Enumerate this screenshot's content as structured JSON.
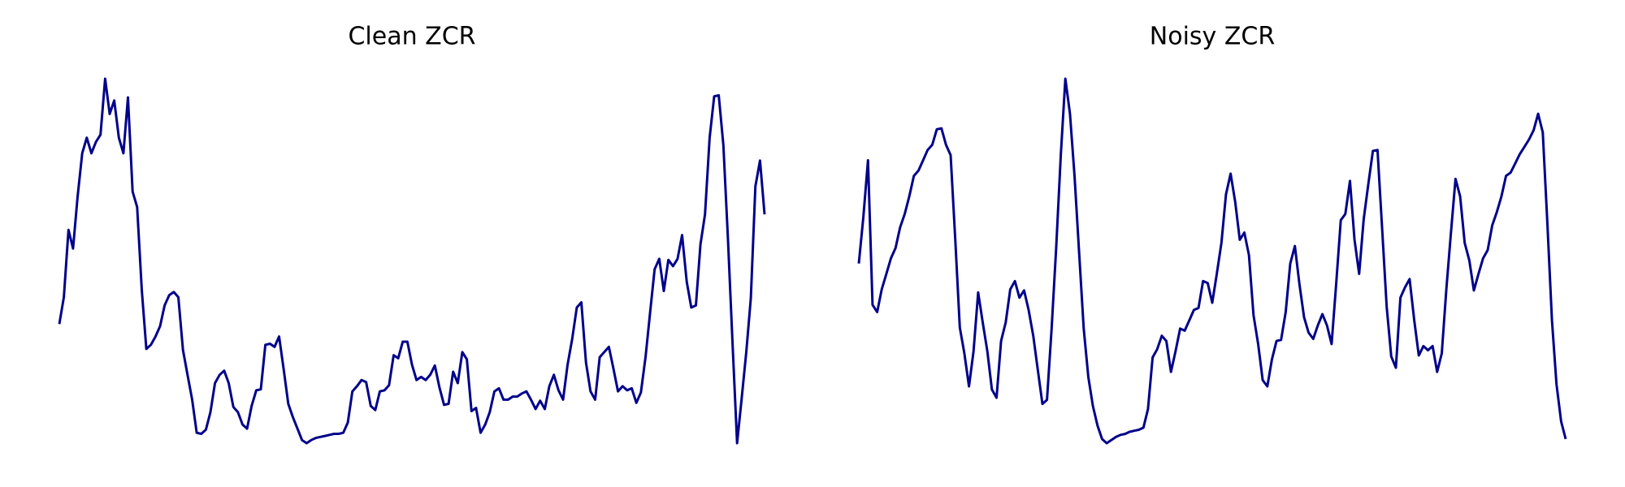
{
  "chart_data": [
    {
      "type": "line",
      "title": "Clean ZCR",
      "color": "#00008b",
      "values": [
        117,
        143,
        208,
        190,
        240,
        282,
        297,
        282,
        293,
        300,
        354,
        320,
        333,
        297,
        282,
        336,
        245,
        230,
        150,
        93,
        97,
        105,
        115,
        135,
        145,
        148,
        143,
        92,
        68,
        44,
        12,
        11,
        15,
        32,
        60,
        68,
        72,
        60,
        37,
        32,
        20,
        16,
        38,
        53,
        54,
        97,
        98,
        95,
        105,
        73,
        40,
        27,
        16,
        5,
        2,
        5,
        7,
        8,
        9,
        10,
        11,
        11,
        12,
        22,
        52,
        57,
        63,
        61,
        38,
        34,
        52,
        53,
        58,
        87,
        84,
        100,
        100,
        78,
        63,
        66,
        63,
        68,
        77,
        56,
        39,
        40,
        71,
        60,
        90,
        83,
        33,
        36,
        12,
        20,
        32,
        52,
        55,
        44,
        44,
        47,
        47,
        50,
        52,
        44,
        35,
        43,
        35,
        57,
        68,
        53,
        44,
        78,
        103,
        133,
        138,
        80,
        52,
        44,
        85,
        90,
        95,
        74,
        52,
        57,
        53,
        55,
        41,
        51,
        85,
        128,
        170,
        180,
        149,
        179,
        173,
        180,
        203,
        158,
        133,
        135,
        194,
        223,
        297,
        337,
        338,
        290,
        200,
        100,
        2,
        45,
        90,
        142,
        250,
        275,
        223
      ]
    },
    {
      "type": "line",
      "title": "Noisy ZCR",
      "color": "#00008b",
      "values": [
        175,
        220,
        275,
        135,
        128,
        150,
        165,
        180,
        190,
        210,
        223,
        240,
        260,
        265,
        275,
        285,
        290,
        305,
        306,
        290,
        280,
        200,
        113,
        88,
        56,
        90,
        147,
        118,
        90,
        53,
        45,
        100,
        118,
        150,
        158,
        142,
        149,
        130,
        105,
        72,
        39,
        43,
        112,
        190,
        280,
        354,
        320,
        260,
        185,
        112,
        65,
        37,
        18,
        5,
        1,
        4,
        7,
        9,
        10,
        12,
        13,
        14,
        16,
        34,
        84,
        92,
        105,
        100,
        70,
        90,
        112,
        110,
        120,
        130,
        132,
        158,
        156,
        137,
        165,
        195,
        242,
        262,
        235,
        198,
        205,
        183,
        125,
        97,
        62,
        56,
        82,
        100,
        101,
        128,
        175,
        192,
        155,
        123,
        108,
        102,
        115,
        126,
        115,
        97,
        155,
        217,
        223,
        255,
        198,
        165,
        218,
        252,
        284,
        285,
        210,
        133,
        85,
        74,
        142,
        152,
        160,
        120,
        86,
        95,
        91,
        95,
        70,
        88,
        150,
        205,
        257,
        240,
        195,
        178,
        149,
        165,
        180,
        188,
        212,
        225,
        240,
        260,
        263,
        272,
        281,
        288,
        295,
        304,
        320,
        302,
        215,
        120,
        58,
        22,
        5
      ]
    }
  ]
}
